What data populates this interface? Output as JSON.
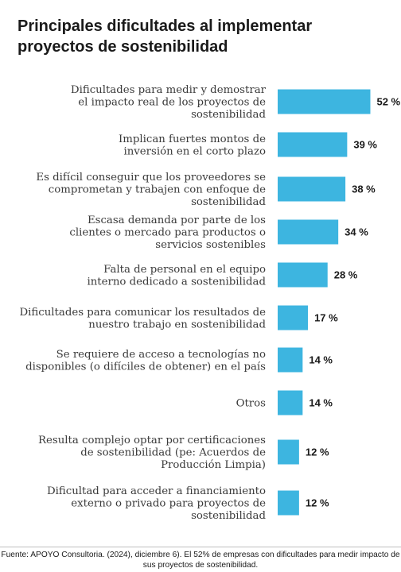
{
  "title": "Principales dificultades al implementar proyectos de sostenibilidad",
  "footer": "Fuente: APOYO Consultoria. (2024), diciembre 6). El 52% de empresas con dificultades para medir impacto de sus proyectos de sostenibilidad.",
  "colors": {
    "bar": "#3db5e0"
  },
  "chart_data": {
    "type": "bar",
    "orientation": "horizontal",
    "title": "Principales dificultades al implementar proyectos de sostenibilidad",
    "xlabel": "",
    "ylabel": "",
    "unit": "%",
    "categories": [
      [
        "Dificultades para medir y demostrar",
        "el impacto real de los proyectos de",
        "sostenibilidad"
      ],
      [
        "Implican fuertes montos de",
        "inversión en el corto plazo"
      ],
      [
        "Es difícil conseguir que los proveedores se",
        "comprometan y trabajen con enfoque de",
        "sostenibilidad"
      ],
      [
        "Escasa demanda por parte de los",
        "clientes o mercado para productos o",
        "servicios sostenibles"
      ],
      [
        "Falta de personal en el equipo",
        "interno dedicado a sostenibilidad"
      ],
      [
        "Dificultades para comunicar los resultados de",
        "nuestro trabajo en sostenibilidad"
      ],
      [
        "Se requiere de acceso a tecnologías no",
        "disponibles (o difíciles de obtener) en el país"
      ],
      [
        "Otros"
      ],
      [
        "Resulta complejo optar por certificaciones",
        "de sostenibilidad (pe: Acuerdos de",
        "Producción Limpia)"
      ],
      [
        "Dificultad para acceder a financiamiento",
        "externo o privado para proyectos de",
        "sostenibilidad"
      ]
    ],
    "values": [
      52,
      39,
      38,
      34,
      28,
      17,
      14,
      14,
      12,
      12
    ],
    "value_labels": [
      "52 %",
      "39 %",
      "38 %",
      "34 %",
      "28 %",
      "17 %",
      "14 %",
      "14 %",
      "12 %",
      "12 %"
    ],
    "grid": false,
    "legend": "none"
  }
}
